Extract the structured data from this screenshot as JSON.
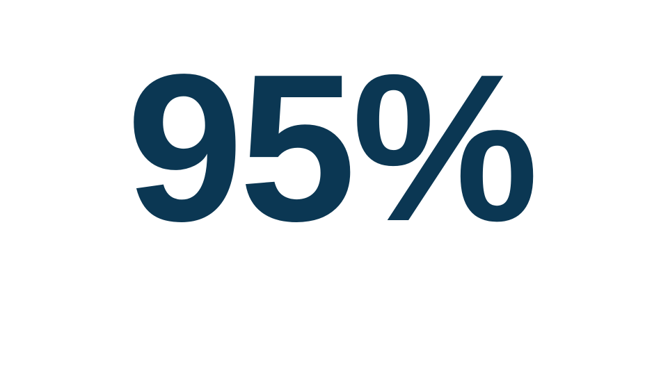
{
  "stat": {
    "value": "95%",
    "color": "#0b3753"
  }
}
